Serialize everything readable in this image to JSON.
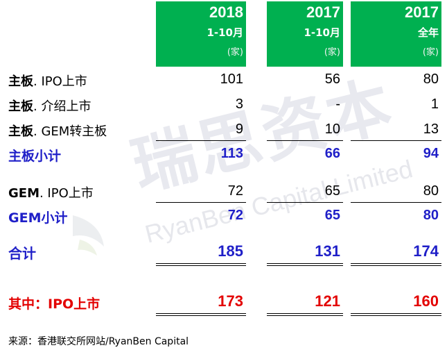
{
  "watermark": {
    "cn": "瑞思资本",
    "en": "RyanBen Capital Limited"
  },
  "columns": [
    {
      "year": "2018",
      "period": "1-10月",
      "unit": "(家)"
    },
    {
      "year": "2017",
      "period": "1-10月",
      "unit": "(家)"
    },
    {
      "year": "2017",
      "period": "全年",
      "unit": "(家)"
    }
  ],
  "rows": {
    "main_ipo": {
      "label_bold": "主板",
      "label_rest": ". IPO上市",
      "values": [
        "101",
        "56",
        "80"
      ]
    },
    "main_intro": {
      "label_bold": "主板",
      "label_rest": ". 介绍上市",
      "values": [
        "3",
        "-",
        "1"
      ]
    },
    "main_gem_transfer": {
      "label_bold": "主板",
      "label_rest": ". GEM转主板",
      "values": [
        "9",
        "10",
        "13"
      ]
    },
    "main_subtotal": {
      "label": "主板小计",
      "values": [
        "113",
        "66",
        "94"
      ]
    },
    "gem_ipo": {
      "label_bold": "GEM",
      "label_rest": ". IPO上市",
      "values": [
        "72",
        "65",
        "80"
      ]
    },
    "gem_subtotal": {
      "label": "GEM小计",
      "values": [
        "72",
        "65",
        "80"
      ]
    },
    "total": {
      "label": "合计",
      "values": [
        "185",
        "131",
        "174"
      ]
    },
    "of_which_ipo": {
      "label": "其中：IPO上市",
      "values": [
        "173",
        "121",
        "160"
      ]
    }
  },
  "source": "来源：香港联交所网站/RyanBen Capital",
  "colors": {
    "header_green": "#00b050",
    "subtotal_blue": "#1f1fc8",
    "highlight_red": "#e30000"
  }
}
